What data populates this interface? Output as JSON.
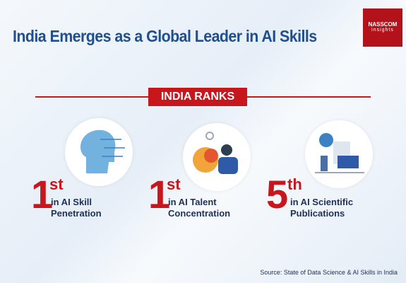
{
  "header": {
    "title": "India Emerges as a Global Leader in AI Skills",
    "logo": {
      "name": "NASSCOM",
      "sub": "insights"
    }
  },
  "banner": "INDIA RANKS",
  "ranks": [
    {
      "number": "1",
      "suffix": "st",
      "lines": [
        "in AI Skill",
        "Penetration"
      ]
    },
    {
      "number": "1",
      "suffix": "st",
      "lines": [
        "in AI Talent",
        "Concentration"
      ]
    },
    {
      "number": "5",
      "suffix": "th",
      "lines": [
        "in AI Scientific",
        "Publications"
      ]
    }
  ],
  "source": "Source: State of Data Science & AI Skills in India"
}
